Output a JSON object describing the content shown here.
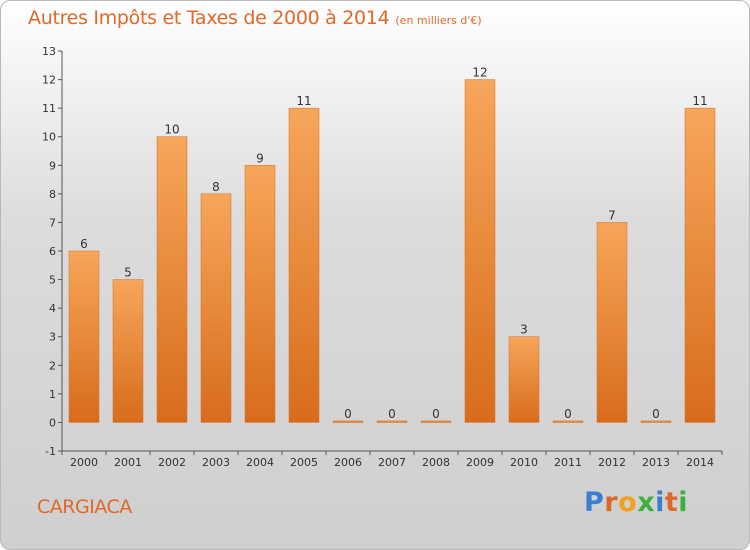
{
  "chart_data": {
    "type": "bar",
    "title": "Autres Impôts et Taxes de 2000 à 2014",
    "subtitle": "(en milliers d'€)",
    "categories": [
      "2000",
      "2001",
      "2002",
      "2003",
      "2004",
      "2005",
      "2006",
      "2007",
      "2008",
      "2009",
      "2010",
      "2011",
      "2012",
      "2013",
      "2014"
    ],
    "values": [
      6,
      5,
      10,
      8,
      9,
      11,
      0,
      0,
      0,
      12,
      3,
      0,
      7,
      0,
      11
    ],
    "ylim": [
      -1,
      13
    ],
    "yticks": [
      -1,
      0,
      1,
      2,
      3,
      4,
      5,
      6,
      7,
      8,
      9,
      10,
      11,
      12,
      13
    ],
    "grid": false,
    "bar_color": "#f0822a",
    "bar_color_light": "#f7a65a",
    "bar_color_dark": "#d86c1c"
  },
  "footer": {
    "commune": "CARGIACA",
    "brand": "Proxiti",
    "brand_colors": [
      "#3a7fcf",
      "#e0672a",
      "#f2a21b",
      "#3fae3f",
      "#3a7fcf",
      "#e0672a",
      "#3fae3f"
    ]
  },
  "colors": {
    "title": "#e0692a",
    "axis": "#555555",
    "text": "#333333"
  }
}
